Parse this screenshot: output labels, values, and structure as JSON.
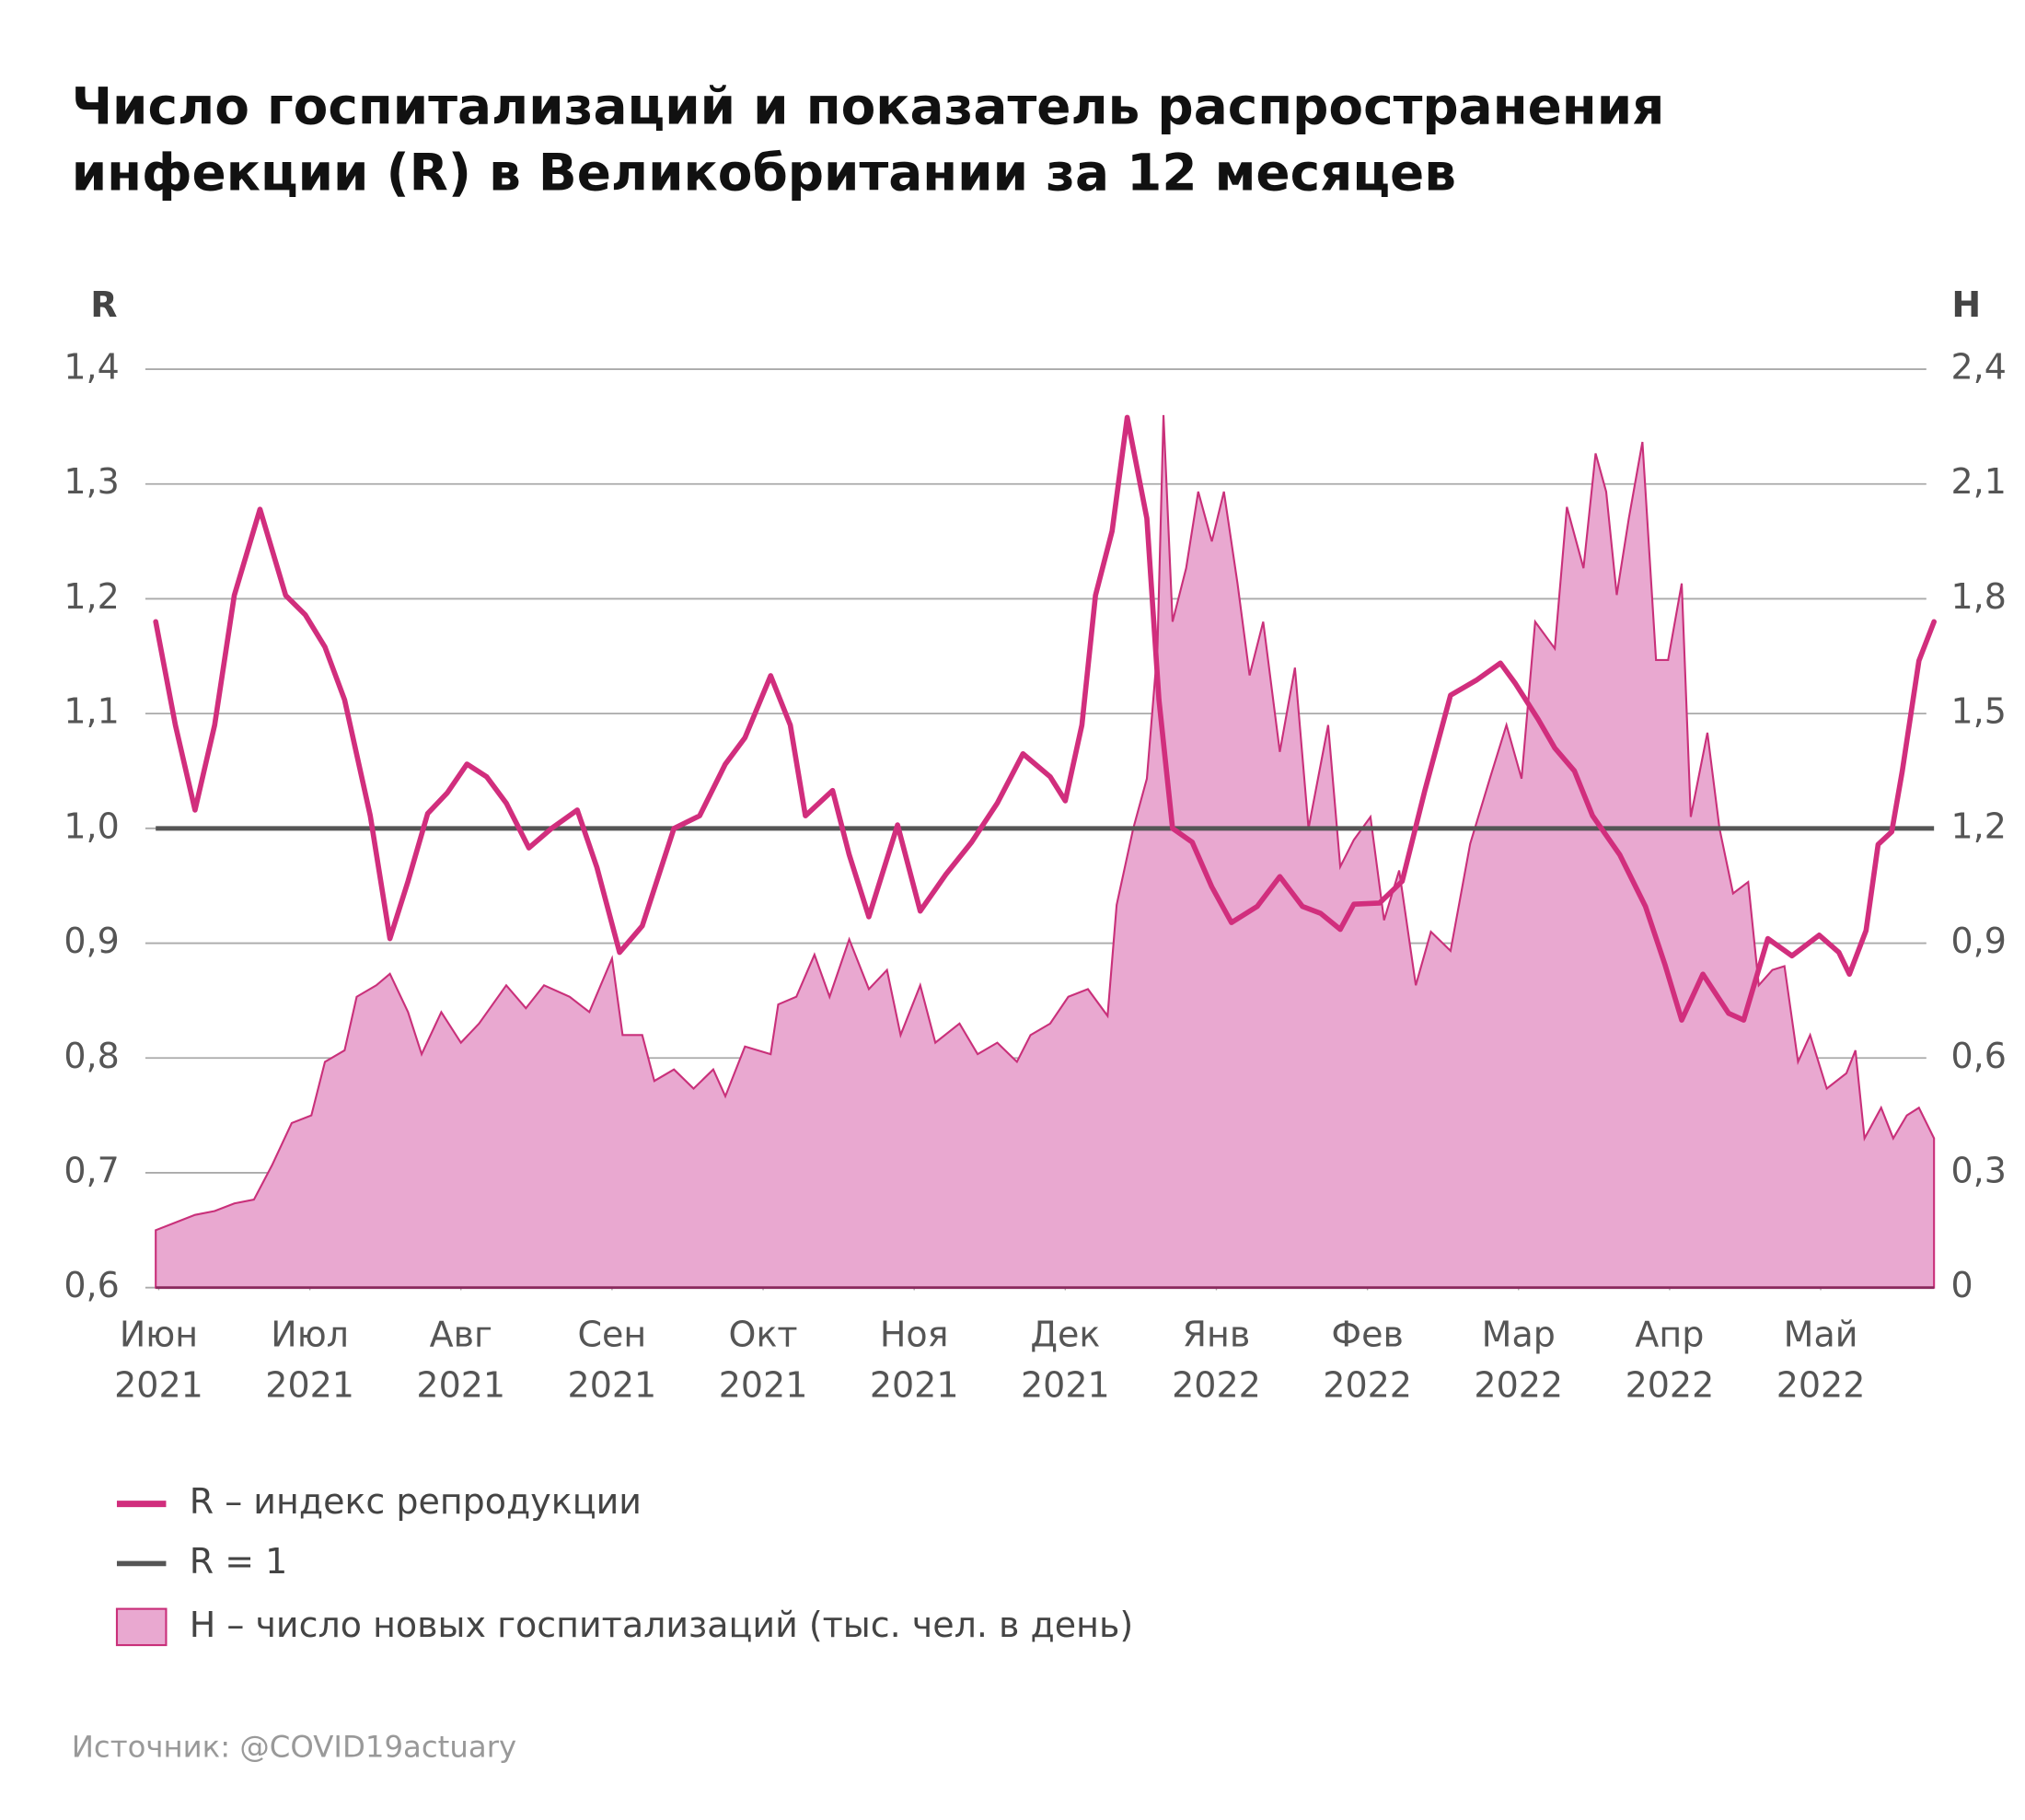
{
  "chart_data": {
    "type": "line-area-dual-axis",
    "title": [
      "Число госпитализаций и показатель распространения",
      "инфекции (R) в Великобритании за 12 месяцев"
    ],
    "y_axis_label": "R",
    "y2_axis_label": "H",
    "source": "Источник: @COVID19actuary",
    "xlim": [
      -0.02,
      11.75
    ],
    "xticks": [
      {
        "value": 0,
        "label": [
          "Июн",
          "2021"
        ]
      },
      {
        "value": 1,
        "label": [
          "Июл",
          "2021"
        ]
      },
      {
        "value": 2,
        "label": [
          "Авг",
          "2021"
        ]
      },
      {
        "value": 3,
        "label": [
          "Сен",
          "2021"
        ]
      },
      {
        "value": 4,
        "label": [
          "Окт",
          "2021"
        ]
      },
      {
        "value": 5,
        "label": [
          "Ноя",
          "2021"
        ]
      },
      {
        "value": 6,
        "label": [
          "Дек",
          "2021"
        ]
      },
      {
        "value": 7,
        "label": [
          "Янв",
          "2022"
        ]
      },
      {
        "value": 8,
        "label": [
          "Фев",
          "2022"
        ]
      },
      {
        "value": 9,
        "label": [
          "Мар",
          "2022"
        ]
      },
      {
        "value": 10,
        "label": [
          "Апр",
          "2022"
        ]
      },
      {
        "value": 11,
        "label": [
          "Май",
          "2022"
        ]
      }
    ],
    "ylim": [
      0.6,
      1.4
    ],
    "yticks": [
      {
        "value": 0.6,
        "label": "0,6"
      },
      {
        "value": 0.7,
        "label": "0,7"
      },
      {
        "value": 0.8,
        "label": "0,8"
      },
      {
        "value": 0.9,
        "label": "0,9"
      },
      {
        "value": 1.0,
        "label": "1,0"
      },
      {
        "value": 1.1,
        "label": "1,1"
      },
      {
        "value": 1.2,
        "label": "1,2"
      },
      {
        "value": 1.3,
        "label": "1,3"
      },
      {
        "value": 1.4,
        "label": "1,4"
      }
    ],
    "y2lim": [
      0,
      2.4
    ],
    "y2ticks": [
      0,
      {
        "value": 0.3,
        "label": "0,3"
      },
      {
        "value": 0.6,
        "label": "0,6"
      },
      {
        "value": 0.9,
        "label": "0,9"
      },
      {
        "value": 1.2,
        "label": "1,2"
      },
      {
        "value": 1.5,
        "label": "1,5"
      },
      {
        "value": 1.8,
        "label": "1,8"
      },
      {
        "value": 2.1,
        "label": "2,1"
      },
      {
        "value": 2.4,
        "label": "2,4"
      }
    ],
    "grid": true,
    "series": [
      {
        "name": "R – индекс репродукции",
        "type": "line",
        "axis": "y",
        "color": "#d12e7d",
        "x": [
          -0.02,
          0.11,
          0.24,
          0.37,
          0.5,
          0.67,
          0.84,
          0.97,
          1.1,
          1.23,
          1.4,
          1.53,
          1.65,
          1.78,
          1.91,
          2.04,
          2.17,
          2.3,
          2.45,
          2.6,
          2.77,
          2.9,
          3.05,
          3.2,
          3.41,
          3.58,
          3.75,
          3.88,
          4.05,
          4.18,
          4.28,
          4.46,
          4.57,
          4.7,
          4.89,
          5.04,
          5.21,
          5.38,
          5.55,
          5.72,
          5.9,
          6.0,
          6.11,
          6.2,
          6.31,
          6.41,
          6.54,
          6.62,
          6.71,
          6.84,
          6.97,
          7.1,
          7.27,
          7.42,
          7.57,
          7.69,
          7.82,
          7.91,
          8.08,
          8.23,
          8.38,
          8.55,
          8.72,
          8.88,
          8.98,
          9.13,
          9.24,
          9.37,
          9.49,
          9.67,
          9.84,
          9.97,
          10.08,
          10.22,
          10.39,
          10.49,
          10.65,
          10.81,
          10.99,
          11.12,
          11.19,
          11.3,
          11.38,
          11.47,
          11.54,
          11.65,
          11.75
        ],
        "values": [
          1.18,
          1.09,
          1.016,
          1.09,
          1.203,
          1.278,
          1.203,
          1.186,
          1.158,
          1.112,
          1.011,
          0.904,
          0.954,
          1.013,
          1.031,
          1.056,
          1.045,
          1.022,
          0.983,
          1.0,
          1.016,
          0.966,
          0.892,
          0.915,
          1.0,
          1.011,
          1.056,
          1.079,
          1.133,
          1.09,
          1.011,
          1.033,
          0.977,
          0.923,
          1.003,
          0.928,
          0.96,
          0.988,
          1.022,
          1.065,
          1.045,
          1.024,
          1.09,
          1.203,
          1.259,
          1.358,
          1.27,
          1.112,
          1.0,
          0.988,
          0.949,
          0.918,
          0.932,
          0.958,
          0.932,
          0.926,
          0.912,
          0.934,
          0.935,
          0.954,
          1.033,
          1.116,
          1.129,
          1.144,
          1.126,
          1.095,
          1.07,
          1.05,
          1.011,
          0.977,
          0.932,
          0.881,
          0.833,
          0.873,
          0.839,
          0.833,
          0.904,
          0.889,
          0.907,
          0.892,
          0.873,
          0.911,
          0.986,
          0.997,
          1.05,
          1.146,
          1.18
        ]
      },
      {
        "name": "H – число новых госпитализаций (тыс. чел. в день)",
        "type": "area",
        "axis": "y2",
        "color": "#e9a8d0",
        "edge_color": "#c9307a",
        "x": [
          -0.02,
          0.11,
          0.24,
          0.37,
          0.5,
          0.63,
          0.75,
          0.88,
          1.01,
          1.1,
          1.23,
          1.31,
          1.44,
          1.53,
          1.65,
          1.74,
          1.87,
          2.0,
          2.12,
          2.3,
          2.43,
          2.55,
          2.72,
          2.85,
          3.0,
          3.07,
          3.2,
          3.28,
          3.41,
          3.54,
          3.67,
          3.75,
          3.88,
          4.05,
          4.1,
          4.22,
          4.34,
          4.44,
          4.57,
          4.7,
          4.82,
          4.91,
          5.04,
          5.14,
          5.3,
          5.42,
          5.55,
          5.68,
          5.77,
          5.9,
          6.02,
          6.15,
          6.28,
          6.34,
          6.45,
          6.54,
          6.61,
          6.65,
          6.71,
          6.8,
          6.88,
          6.97,
          7.05,
          7.14,
          7.22,
          7.31,
          7.42,
          7.52,
          7.61,
          7.74,
          7.82,
          7.91,
          8.02,
          8.11,
          8.21,
          8.32,
          8.42,
          8.55,
          8.68,
          8.81,
          8.92,
          9.02,
          9.11,
          9.24,
          9.32,
          9.43,
          9.51,
          9.58,
          9.65,
          9.73,
          9.82,
          9.91,
          9.99,
          10.08,
          10.14,
          10.25,
          10.33,
          10.42,
          10.52,
          10.59,
          10.68,
          10.76,
          10.85,
          10.93,
          11.04,
          11.17,
          11.23,
          11.29,
          11.4,
          11.48,
          11.57,
          11.65,
          11.75
        ],
        "values": [
          0.15,
          0.17,
          0.19,
          0.2,
          0.22,
          0.23,
          0.32,
          0.43,
          0.45,
          0.59,
          0.62,
          0.76,
          0.79,
          0.82,
          0.72,
          0.61,
          0.72,
          0.64,
          0.69,
          0.79,
          0.73,
          0.79,
          0.76,
          0.72,
          0.86,
          0.66,
          0.66,
          0.54,
          0.57,
          0.52,
          0.57,
          0.5,
          0.63,
          0.61,
          0.74,
          0.76,
          0.87,
          0.76,
          0.91,
          0.78,
          0.83,
          0.66,
          0.79,
          0.64,
          0.69,
          0.61,
          0.64,
          0.59,
          0.66,
          0.69,
          0.76,
          0.78,
          0.71,
          1.0,
          1.2,
          1.33,
          1.67,
          2.28,
          1.74,
          1.88,
          2.08,
          1.95,
          2.08,
          1.84,
          1.6,
          1.74,
          1.4,
          1.62,
          1.2,
          1.47,
          1.1,
          1.17,
          1.23,
          0.96,
          1.09,
          0.79,
          0.93,
          0.88,
          1.16,
          1.33,
          1.47,
          1.33,
          1.74,
          1.67,
          2.04,
          1.88,
          2.18,
          2.08,
          1.81,
          2.01,
          2.21,
          1.64,
          1.64,
          1.84,
          1.23,
          1.45,
          1.2,
          1.03,
          1.06,
          0.79,
          0.83,
          0.84,
          0.59,
          0.66,
          0.52,
          0.56,
          0.62,
          0.39,
          0.47,
          0.39,
          0.45,
          0.47,
          0.39
        ]
      }
    ],
    "reference_lines": [
      {
        "name": "R = 1",
        "value": 1.0,
        "axis": "y",
        "color": "#555555"
      }
    ]
  }
}
